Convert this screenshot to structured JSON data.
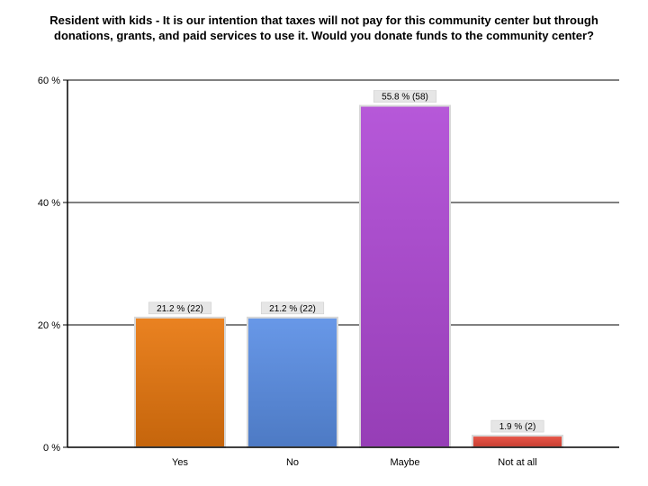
{
  "chart_data": {
    "type": "bar",
    "title": "Resident with kids - It is our intention that taxes will not pay for this community center but through donations, grants, and paid services to use it.  Would you donate funds to the community center?",
    "categories": [
      "Yes",
      "No",
      "Maybe",
      "Not at all"
    ],
    "values": [
      21.2,
      21.2,
      55.8,
      1.9
    ],
    "counts": [
      22,
      22,
      58,
      2
    ],
    "data_labels": [
      "21.2 % (22)",
      "21.2 % (22)",
      "55.8 % (58)",
      "1.9 % (2)"
    ],
    "colors": [
      "#e8770e",
      "#5b8fe6",
      "#b049d6",
      "#e8493a"
    ],
    "xlabel": "",
    "ylabel": "",
    "ylim": [
      0,
      60
    ],
    "yticks": [
      0,
      20,
      40,
      60
    ],
    "ytick_labels": [
      "0 %",
      "20 %",
      "40 %",
      "60 %"
    ],
    "grid": true
  }
}
